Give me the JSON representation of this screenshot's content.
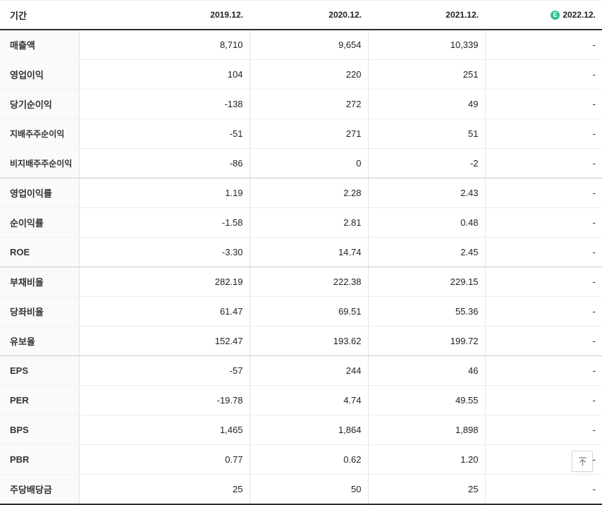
{
  "table": {
    "period_label": "기간",
    "estimate_badge": "E",
    "columns": [
      {
        "label": "2019.12.",
        "estimate": false
      },
      {
        "label": "2020.12.",
        "estimate": false
      },
      {
        "label": "2021.12.",
        "estimate": false
      },
      {
        "label": "2022.12.",
        "estimate": true
      }
    ],
    "rows": [
      {
        "label": "매출액",
        "values": [
          "8,710",
          "9,654",
          "10,339",
          "-"
        ],
        "small": false,
        "group_end": false
      },
      {
        "label": "영업이익",
        "values": [
          "104",
          "220",
          "251",
          "-"
        ],
        "small": false,
        "group_end": false
      },
      {
        "label": "당기순이익",
        "values": [
          "-138",
          "272",
          "49",
          "-"
        ],
        "small": false,
        "group_end": false
      },
      {
        "label": "지배주주순이익",
        "values": [
          "-51",
          "271",
          "51",
          "-"
        ],
        "small": true,
        "group_end": false
      },
      {
        "label": "비지배주주순이익",
        "values": [
          "-86",
          "0",
          "-2",
          "-"
        ],
        "small": true,
        "group_end": true
      },
      {
        "label": "영업이익률",
        "values": [
          "1.19",
          "2.28",
          "2.43",
          "-"
        ],
        "small": false,
        "group_end": false
      },
      {
        "label": "순이익률",
        "values": [
          "-1.58",
          "2.81",
          "0.48",
          "-"
        ],
        "small": false,
        "group_end": false
      },
      {
        "label": "ROE",
        "values": [
          "-3.30",
          "14.74",
          "2.45",
          "-"
        ],
        "small": false,
        "group_end": true
      },
      {
        "label": "부채비율",
        "values": [
          "282.19",
          "222.38",
          "229.15",
          "-"
        ],
        "small": false,
        "group_end": false
      },
      {
        "label": "당좌비율",
        "values": [
          "61.47",
          "69.51",
          "55.36",
          "-"
        ],
        "small": false,
        "group_end": false
      },
      {
        "label": "유보율",
        "values": [
          "152.47",
          "193.62",
          "199.72",
          "-"
        ],
        "small": false,
        "group_end": true
      },
      {
        "label": "EPS",
        "values": [
          "-57",
          "244",
          "46",
          "-"
        ],
        "small": false,
        "group_end": false
      },
      {
        "label": "PER",
        "values": [
          "-19.78",
          "4.74",
          "49.55",
          "-"
        ],
        "small": false,
        "group_end": false
      },
      {
        "label": "BPS",
        "values": [
          "1,465",
          "1,864",
          "1,898",
          "-"
        ],
        "small": false,
        "group_end": false
      },
      {
        "label": "PBR",
        "values": [
          "0.77",
          "0.62",
          "1.20",
          "-"
        ],
        "small": false,
        "group_end": false
      },
      {
        "label": "주당배당금",
        "values": [
          "25",
          "50",
          "25",
          "-"
        ],
        "small": false,
        "group_end": false
      }
    ]
  },
  "colors": {
    "negative": "#4a7de4",
    "estimate_green": "#2bc194",
    "header_border": "#2b2b2b"
  },
  "scroll_top_button": {
    "icon": "arrow-up-to-bar"
  }
}
